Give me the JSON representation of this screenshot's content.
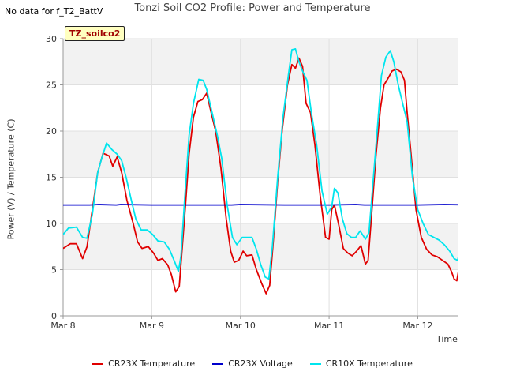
{
  "header": {
    "nodata_text": "No data for f_T2_BattV",
    "title": "Tonzi Soil CO2 Profile: Power and Temperature",
    "badge": "TZ_soilco2"
  },
  "chart_data": {
    "type": "line",
    "title": "Tonzi Soil CO2 Profile: Power and Temperature",
    "xlabel": "Time",
    "ylabel": "Power (V) / Temperature (C)",
    "x_unit": "days since Mar 8 00:00",
    "xlim": [
      0,
      4.45
    ],
    "ylim": [
      0,
      30
    ],
    "y_ticks": [
      0,
      5,
      10,
      15,
      20,
      25,
      30
    ],
    "x_ticks": [
      {
        "value": 0,
        "label": "Mar 8"
      },
      {
        "value": 1,
        "label": "Mar 9"
      },
      {
        "value": 2,
        "label": "Mar 10"
      },
      {
        "value": 3,
        "label": "Mar 11"
      },
      {
        "value": 4,
        "label": "Mar 12"
      }
    ],
    "grid": true,
    "legend_position": "bottom",
    "series": [
      {
        "name": "CR23X Temperature",
        "color": "#e00000",
        "points": [
          [
            0.0,
            7.3
          ],
          [
            0.08,
            7.8
          ],
          [
            0.15,
            7.8
          ],
          [
            0.22,
            6.2
          ],
          [
            0.27,
            7.5
          ],
          [
            0.33,
            11.5
          ],
          [
            0.39,
            15.5
          ],
          [
            0.45,
            17.6
          ],
          [
            0.52,
            17.3
          ],
          [
            0.56,
            16.2
          ],
          [
            0.61,
            17.2
          ],
          [
            0.66,
            15.5
          ],
          [
            0.72,
            12.5
          ],
          [
            0.79,
            10.0
          ],
          [
            0.84,
            8.0
          ],
          [
            0.89,
            7.3
          ],
          [
            0.96,
            7.5
          ],
          [
            1.02,
            6.8
          ],
          [
            1.07,
            6.0
          ],
          [
            1.12,
            6.2
          ],
          [
            1.18,
            5.5
          ],
          [
            1.22,
            4.5
          ],
          [
            1.27,
            2.6
          ],
          [
            1.31,
            3.2
          ],
          [
            1.34,
            7.0
          ],
          [
            1.38,
            12.0
          ],
          [
            1.42,
            17.5
          ],
          [
            1.47,
            21.5
          ],
          [
            1.52,
            23.2
          ],
          [
            1.57,
            23.4
          ],
          [
            1.62,
            24.1
          ],
          [
            1.67,
            22.0
          ],
          [
            1.72,
            20.0
          ],
          [
            1.78,
            16.0
          ],
          [
            1.84,
            10.5
          ],
          [
            1.89,
            7.0
          ],
          [
            1.93,
            5.8
          ],
          [
            1.98,
            6.0
          ],
          [
            2.03,
            7.0
          ],
          [
            2.07,
            6.5
          ],
          [
            2.13,
            6.6
          ],
          [
            2.18,
            5.0
          ],
          [
            2.24,
            3.5
          ],
          [
            2.29,
            2.4
          ],
          [
            2.33,
            3.3
          ],
          [
            2.37,
            8.0
          ],
          [
            2.42,
            14.5
          ],
          [
            2.47,
            20.0
          ],
          [
            2.53,
            25.0
          ],
          [
            2.58,
            27.2
          ],
          [
            2.62,
            26.8
          ],
          [
            2.66,
            27.9
          ],
          [
            2.7,
            27.0
          ],
          [
            2.74,
            23.0
          ],
          [
            2.79,
            22.0
          ],
          [
            2.84,
            18.5
          ],
          [
            2.9,
            13.0
          ],
          [
            2.96,
            8.5
          ],
          [
            3.0,
            8.3
          ],
          [
            3.03,
            11.5
          ],
          [
            3.06,
            12.0
          ],
          [
            3.11,
            9.8
          ],
          [
            3.16,
            7.3
          ],
          [
            3.21,
            6.8
          ],
          [
            3.26,
            6.5
          ],
          [
            3.31,
            7.0
          ],
          [
            3.36,
            7.6
          ],
          [
            3.41,
            5.6
          ],
          [
            3.44,
            6.0
          ],
          [
            3.48,
            11.0
          ],
          [
            3.53,
            17.5
          ],
          [
            3.58,
            22.5
          ],
          [
            3.62,
            25.0
          ],
          [
            3.67,
            25.8
          ],
          [
            3.71,
            26.5
          ],
          [
            3.76,
            26.7
          ],
          [
            3.81,
            26.4
          ],
          [
            3.85,
            25.5
          ],
          [
            3.88,
            22.0
          ],
          [
            3.92,
            18.0
          ],
          [
            3.98,
            11.5
          ],
          [
            4.04,
            8.5
          ],
          [
            4.1,
            7.2
          ],
          [
            4.16,
            6.6
          ],
          [
            4.22,
            6.4
          ],
          [
            4.28,
            6.0
          ],
          [
            4.34,
            5.6
          ],
          [
            4.38,
            4.8
          ],
          [
            4.41,
            4.0
          ],
          [
            4.44,
            3.8
          ],
          [
            4.48,
            6.0
          ],
          [
            4.52,
            11.0
          ],
          [
            4.57,
            18.5
          ],
          [
            4.62,
            22.5
          ],
          [
            4.67,
            24.6
          ]
        ]
      },
      {
        "name": "CR23X Voltage",
        "color": "#0000cc",
        "points": [
          [
            0.0,
            12.0
          ],
          [
            0.3,
            12.0
          ],
          [
            0.4,
            12.05
          ],
          [
            0.6,
            12.0
          ],
          [
            0.65,
            12.05
          ],
          [
            1.0,
            12.0
          ],
          [
            1.5,
            12.0
          ],
          [
            1.9,
            12.0
          ],
          [
            2.0,
            12.05
          ],
          [
            2.5,
            12.0
          ],
          [
            3.0,
            12.0
          ],
          [
            3.3,
            12.05
          ],
          [
            3.4,
            12.0
          ],
          [
            4.0,
            12.0
          ],
          [
            4.3,
            12.05
          ],
          [
            4.67,
            12.0
          ]
        ]
      },
      {
        "name": "CR10X Temperature",
        "color": "#00e5ee",
        "points": [
          [
            0.0,
            8.8
          ],
          [
            0.06,
            9.5
          ],
          [
            0.15,
            9.6
          ],
          [
            0.22,
            8.5
          ],
          [
            0.27,
            8.4
          ],
          [
            0.33,
            11.0
          ],
          [
            0.39,
            15.5
          ],
          [
            0.44,
            17.2
          ],
          [
            0.49,
            18.7
          ],
          [
            0.55,
            18.0
          ],
          [
            0.61,
            17.5
          ],
          [
            0.66,
            16.8
          ],
          [
            0.71,
            15.0
          ],
          [
            0.77,
            12.5
          ],
          [
            0.82,
            10.5
          ],
          [
            0.88,
            9.3
          ],
          [
            0.95,
            9.3
          ],
          [
            1.01,
            8.8
          ],
          [
            1.07,
            8.1
          ],
          [
            1.14,
            8.0
          ],
          [
            1.2,
            7.2
          ],
          [
            1.26,
            5.8
          ],
          [
            1.3,
            4.8
          ],
          [
            1.33,
            6.5
          ],
          [
            1.37,
            12.5
          ],
          [
            1.42,
            19.5
          ],
          [
            1.47,
            23.0
          ],
          [
            1.53,
            25.6
          ],
          [
            1.58,
            25.5
          ],
          [
            1.62,
            24.5
          ],
          [
            1.68,
            22.0
          ],
          [
            1.74,
            19.5
          ],
          [
            1.79,
            17.0
          ],
          [
            1.85,
            12.0
          ],
          [
            1.91,
            8.5
          ],
          [
            1.96,
            7.7
          ],
          [
            2.02,
            8.5
          ],
          [
            2.07,
            8.5
          ],
          [
            2.13,
            8.5
          ],
          [
            2.18,
            7.2
          ],
          [
            2.23,
            5.5
          ],
          [
            2.28,
            4.2
          ],
          [
            2.32,
            4.0
          ],
          [
            2.36,
            7.5
          ],
          [
            2.42,
            15.0
          ],
          [
            2.48,
            21.5
          ],
          [
            2.54,
            26.0
          ],
          [
            2.58,
            28.8
          ],
          [
            2.62,
            28.9
          ],
          [
            2.66,
            27.5
          ],
          [
            2.7,
            26.5
          ],
          [
            2.75,
            25.5
          ],
          [
            2.8,
            22.0
          ],
          [
            2.86,
            18.5
          ],
          [
            2.92,
            13.5
          ],
          [
            2.98,
            11.0
          ],
          [
            3.03,
            11.8
          ],
          [
            3.06,
            13.8
          ],
          [
            3.1,
            13.3
          ],
          [
            3.15,
            10.5
          ],
          [
            3.2,
            8.9
          ],
          [
            3.25,
            8.5
          ],
          [
            3.3,
            8.5
          ],
          [
            3.35,
            9.2
          ],
          [
            3.41,
            8.3
          ],
          [
            3.45,
            9.0
          ],
          [
            3.5,
            15.0
          ],
          [
            3.55,
            21.0
          ],
          [
            3.59,
            26.0
          ],
          [
            3.64,
            28.0
          ],
          [
            3.69,
            28.7
          ],
          [
            3.73,
            27.5
          ],
          [
            3.78,
            25.0
          ],
          [
            3.83,
            23.0
          ],
          [
            3.88,
            21.0
          ],
          [
            3.94,
            15.0
          ],
          [
            4.0,
            11.5
          ],
          [
            4.06,
            10.0
          ],
          [
            4.12,
            8.8
          ],
          [
            4.18,
            8.5
          ],
          [
            4.24,
            8.2
          ],
          [
            4.3,
            7.7
          ],
          [
            4.36,
            7.0
          ],
          [
            4.41,
            6.2
          ],
          [
            4.45,
            6.0
          ],
          [
            4.49,
            8.0
          ],
          [
            4.53,
            14.0
          ],
          [
            4.58,
            21.0
          ],
          [
            4.63,
            25.7
          ],
          [
            4.67,
            27.0
          ]
        ]
      }
    ]
  }
}
